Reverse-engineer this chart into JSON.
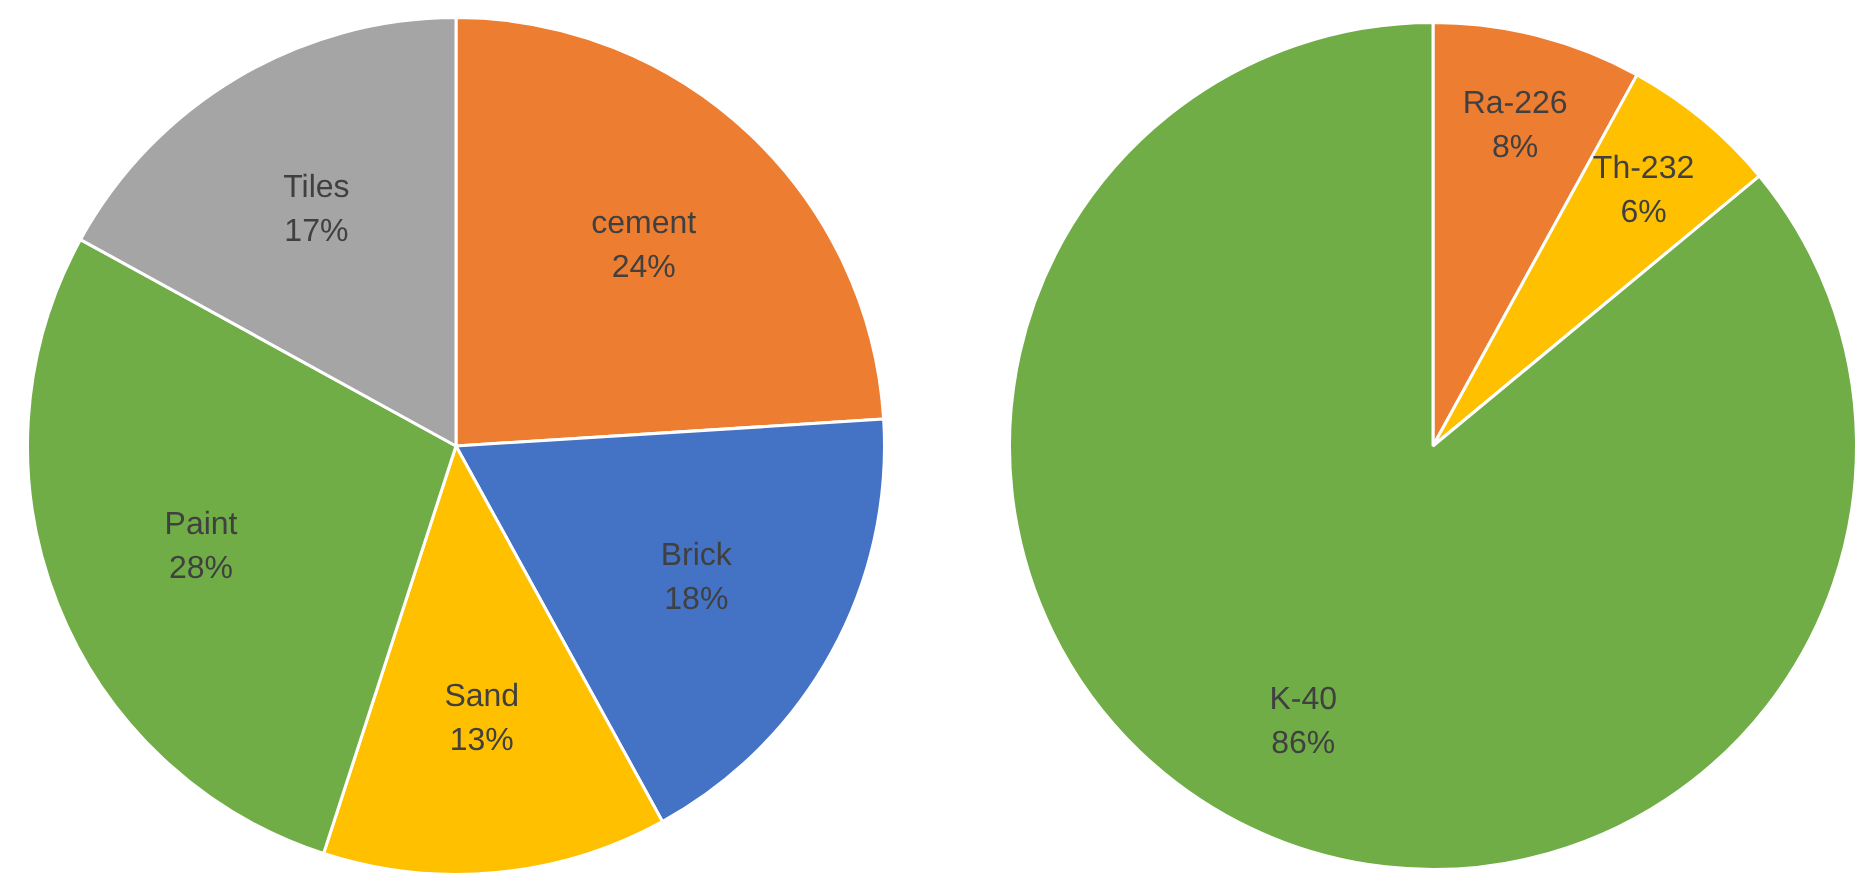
{
  "chart_data": [
    {
      "type": "pie",
      "categories": [
        "cement",
        "Brick",
        "Sand",
        "Paint",
        "Tiles"
      ],
      "values": [
        24,
        18,
        13,
        28,
        17
      ],
      "colors": [
        "#ed7d31",
        "#4472c4",
        "#ffc000",
        "#70ad47",
        "#a5a5a5"
      ],
      "value_labels": [
        "24%",
        "18%",
        "13%",
        "28%",
        "17%"
      ]
    },
    {
      "type": "pie",
      "categories": [
        "Ra-226",
        "Th-232",
        "K-40"
      ],
      "values": [
        8,
        6,
        86
      ],
      "colors": [
        "#ed7d31",
        "#ffc000",
        "#70ad47"
      ],
      "value_labels": [
        "8%",
        "6%",
        "86%"
      ]
    }
  ]
}
